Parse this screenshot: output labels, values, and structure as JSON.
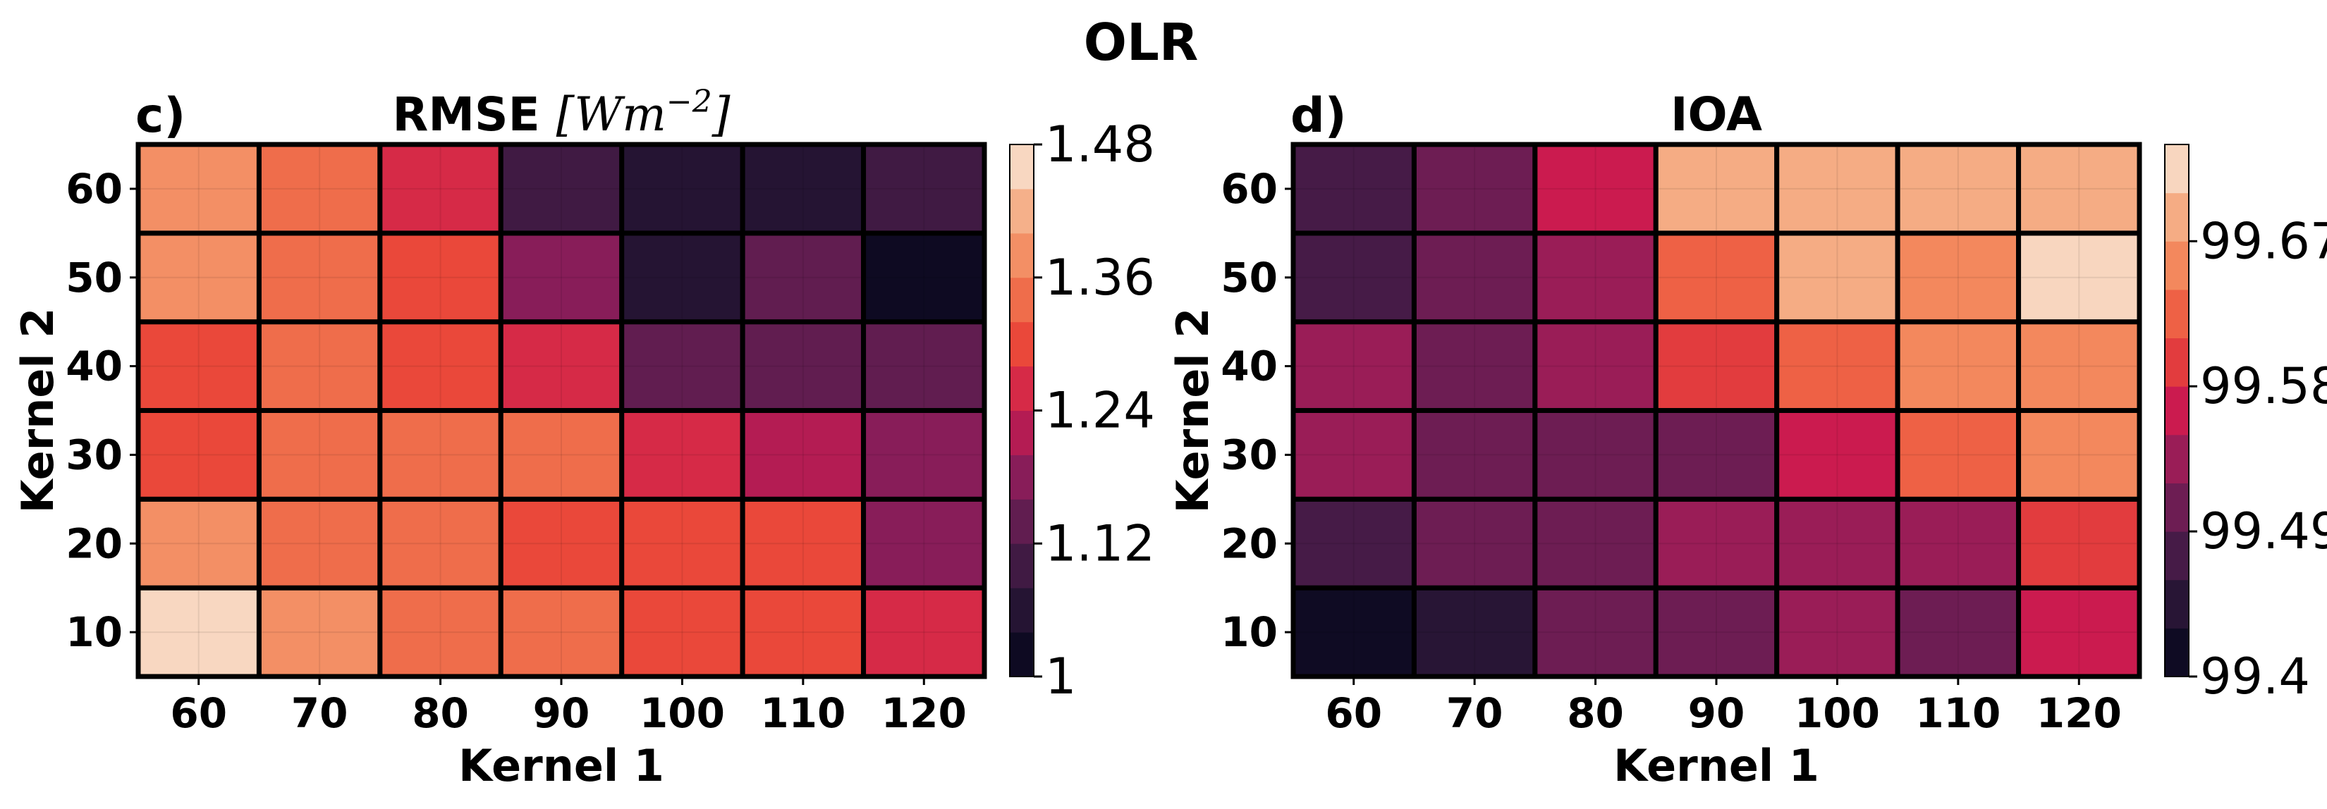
{
  "suptitle": "OLR",
  "chart_data": [
    {
      "type": "heatmap",
      "panel_label": "c)",
      "title_text": "RMSE",
      "title_unit": "[Wm",
      "title_unit_exp": "−2",
      "title_unit_close": "]",
      "xlabel": "Kernel 1",
      "ylabel": "Kernel 2",
      "x": [
        "60",
        "70",
        "80",
        "90",
        "100",
        "110",
        "120"
      ],
      "y": [
        "10",
        "20",
        "30",
        "40",
        "50",
        "60"
      ],
      "values": [
        [
          1.47,
          1.39,
          1.33,
          1.33,
          1.3,
          1.3,
          1.26
        ],
        [
          1.39,
          1.33,
          1.33,
          1.3,
          1.3,
          1.3,
          1.19
        ],
        [
          1.3,
          1.33,
          1.34,
          1.34,
          1.27,
          1.21,
          1.17
        ],
        [
          1.3,
          1.34,
          1.3,
          1.24,
          1.16,
          1.12,
          1.12
        ],
        [
          1.39,
          1.34,
          1.3,
          1.2,
          1.07,
          1.13,
          1.0
        ],
        [
          1.39,
          1.34,
          1.24,
          1.08,
          1.06,
          1.07,
          1.08
        ]
      ],
      "vmin": 1.0,
      "vmax": 1.48,
      "colorbar_ticks": [
        "1",
        "1.12",
        "1.24",
        "1.36",
        "1.48"
      ],
      "colorbar_tick_values": [
        1.0,
        1.12,
        1.24,
        1.36,
        1.48
      ],
      "colorbar_levels": 12,
      "colorbar_reversed": false
    },
    {
      "type": "heatmap",
      "panel_label": "d)",
      "title_text": "IOA",
      "xlabel": "Kernel 1",
      "ylabel": "Kernel 2",
      "x": [
        "60",
        "70",
        "80",
        "90",
        "100",
        "110",
        "120"
      ],
      "y": [
        "10",
        "20",
        "30",
        "40",
        "50",
        "60"
      ],
      "values": [
        [
          99.41,
          99.45,
          99.5,
          99.5,
          99.53,
          99.5,
          99.58
        ],
        [
          99.47,
          99.5,
          99.5,
          99.53,
          99.53,
          99.53,
          99.61
        ],
        [
          99.53,
          99.5,
          99.5,
          99.5,
          99.58,
          99.63,
          99.66
        ],
        [
          99.53,
          99.5,
          99.53,
          99.6,
          99.63,
          99.66,
          99.66
        ],
        [
          99.47,
          99.5,
          99.53,
          99.63,
          99.68,
          99.65,
          99.73
        ],
        [
          99.47,
          99.5,
          99.58,
          99.69,
          99.69,
          99.69,
          99.68
        ]
      ],
      "vmin": 99.4,
      "vmax": 99.73,
      "colorbar_ticks": [
        "99.4",
        "99.49",
        "99.58",
        "99.67"
      ],
      "colorbar_tick_values": [
        99.4,
        99.49,
        99.58,
        99.67
      ],
      "colorbar_levels": 11,
      "colorbar_reversed": false
    }
  ]
}
